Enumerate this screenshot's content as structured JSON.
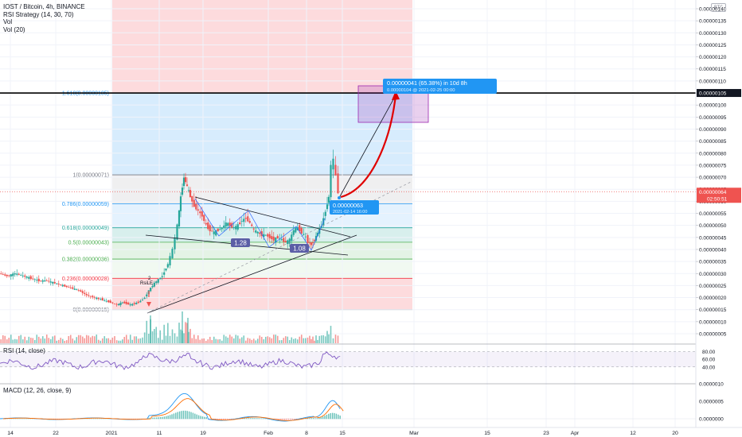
{
  "legend": {
    "title": "IOST / Bitcoin, 4h, BINANCE",
    "rsi_strategy": "RSI Strategy (14, 30, 70)",
    "vol": "Vol",
    "vol20": "Vol (20)"
  },
  "currency_badge": "BTC",
  "rsi_label": "RSI (14, close)",
  "macd_label": "MACD (12, 26, close, 9)",
  "colors": {
    "up": "#26a69a",
    "down": "#ef5350",
    "rsi_line": "#7e57c2",
    "macd_line": "#2196f3",
    "signal_line": "#ff6d00",
    "target_box": "#9c27b0",
    "projection_arrow": "#e00000"
  },
  "fib_levels": [
    {
      "label": "1.618(0.00000105)",
      "color": "#2196f3"
    },
    {
      "label": "1(0.00000071)",
      "color": "#787b86"
    },
    {
      "label": "0.786(0.00000059)",
      "color": "#2196f3"
    },
    {
      "label": "0.618(0.00000049)",
      "color": "#26a69a"
    },
    {
      "label": "0.5(0.00000043)",
      "color": "#4caf50"
    },
    {
      "label": "0.382(0.00000036)",
      "color": "#4caf50"
    },
    {
      "label": "0.236(0.00000028)",
      "color": "#f23645"
    },
    {
      "label": "0(0.00000015)",
      "color": "#787b86"
    }
  ],
  "price_axis": [
    "0.00000140",
    "0.00000135",
    "0.00000130",
    "0.00000125",
    "0.00000120",
    "0.00000115",
    "0.00000110",
    "0.00000105",
    "0.00000100",
    "0.00000095",
    "0.00000090",
    "0.00000085",
    "0.00000080",
    "0.00000075",
    "0.00000070",
    "0.00000065",
    "0.00000060",
    "0.00000055",
    "0.00000050",
    "0.00000045",
    "0.00000040",
    "0.00000035",
    "0.00000030",
    "0.00000025",
    "0.00000020",
    "0.00000015",
    "0.00000010",
    "0.00000005"
  ],
  "price_axis_values": [
    140,
    135,
    130,
    125,
    120,
    115,
    110,
    105,
    100,
    95,
    90,
    85,
    80,
    75,
    70,
    65,
    60,
    55,
    50,
    45,
    40,
    35,
    30,
    25,
    20,
    15,
    10,
    5
  ],
  "highlight_price": "0.00000105",
  "last_price": "0.00000064",
  "countdown": "02:50:51",
  "rsi_axis": [
    "80.00",
    "60.00",
    "40.00"
  ],
  "macd_axis": [
    "0.0000010",
    "0.0000005",
    "0.0000000"
  ],
  "time_axis": [
    "14",
    "22",
    "2021",
    "11",
    "19",
    "Feb",
    "8",
    "15",
    "Mar",
    "15",
    "23",
    "Apr",
    "12",
    "20"
  ],
  "pattern_labels": {
    "a": "1.28",
    "b": "1.08"
  },
  "target": {
    "line1": "0.00000041 (65.38%) in 10d 8h",
    "line2": "0.00000104 @ 2021-02-25  00:00"
  },
  "entry": {
    "price": "0.00000063",
    "date": "2021-02-14  16:00"
  },
  "rsi_signal_label": "RsiLE",
  "rsi_signal_index": "2",
  "chart_data": {
    "type": "candlestick",
    "title": "IOST / Bitcoin, 4h, BINANCE",
    "price_unit": "BTC",
    "price_range": [
      3e-08,
      1.41e-06
    ],
    "x": [
      "2020-12-14",
      "2020-12-22",
      "2021-01-01",
      "2021-01-11",
      "2021-01-19",
      "2021-02-01",
      "2021-02-08",
      "2021-02-15",
      "2021-03-01",
      "2021-03-15",
      "2021-03-23",
      "2021-04-01",
      "2021-04-12",
      "2021-04-20"
    ],
    "close_approx": [
      2.9e-07,
      2.5e-07,
      1.7e-07,
      3.5e-07,
      5.8e-07,
      4.6e-07,
      4.3e-07,
      6.4e-07
    ],
    "close_dates": [
      "2020-12-14",
      "2020-12-22",
      "2021-01-01",
      "2021-01-11",
      "2021-01-19",
      "2021-02-01",
      "2021-02-08",
      "2021-02-15"
    ],
    "fib_prices": [
      1.05e-06,
      7.1e-07,
      5.9e-07,
      4.9e-07,
      4.3e-07,
      3.6e-07,
      2.8e-07,
      1.5e-07
    ],
    "rsi_range": [
      0,
      100
    ],
    "rsi_bands": [
      40,
      80
    ],
    "grid": true
  }
}
